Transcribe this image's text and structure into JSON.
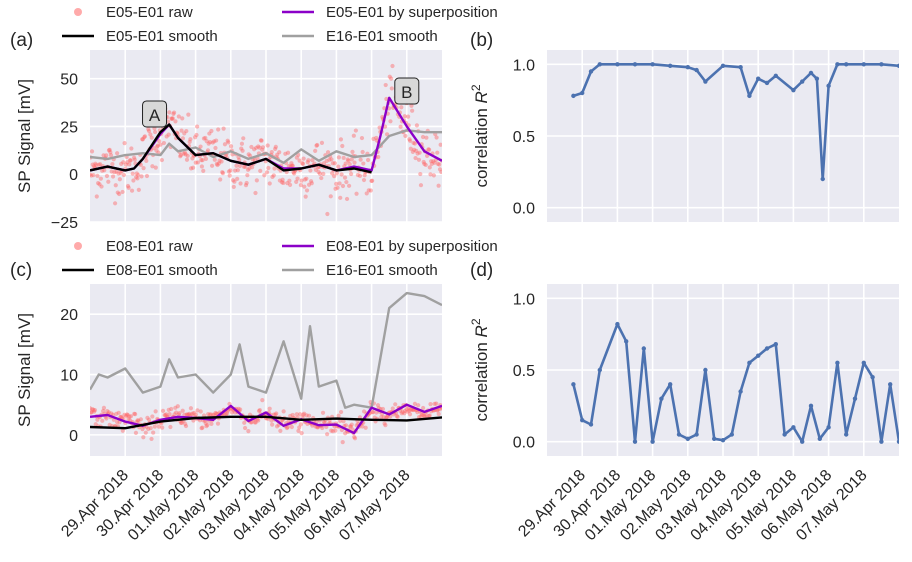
{
  "chart_data": [
    {
      "type": "scatter",
      "panel_label": "(a)",
      "ylabel": "SP Signal [mV]",
      "ylim": [
        -25,
        65
      ],
      "yticks": [
        "50",
        "25",
        "0",
        "−25"
      ],
      "yticks_values": [
        50,
        25,
        0,
        -25
      ],
      "xlim": [
        "2018-04-28",
        "2018-05-08"
      ],
      "grid": true,
      "legend_placement": "top-above",
      "legend": [
        "E05-E01 raw",
        "E05-E01 smooth",
        "E05-E01 by superposition",
        "E16-E01 smooth"
      ],
      "annotations": [
        {
          "text": "A",
          "x": "2018-04-29 20:00",
          "y": 31
        },
        {
          "text": "B",
          "x": "2018-05-07 00:00",
          "y": 43
        }
      ],
      "series": [
        {
          "name": "E05-E01 raw",
          "color": "#ff6666",
          "kind": "points",
          "note": "noisy samples around smooth curve"
        },
        {
          "name": "E05-E01 smooth",
          "color": "#000000",
          "x": [
            "2018-04-28",
            "2018-04-28 12:00",
            "2018-04-29",
            "2018-04-29 06:00",
            "2018-04-29 12:00",
            "2018-04-30",
            "2018-04-30 06:00",
            "2018-04-30 12:00",
            "2018-05-01",
            "2018-05-01 12:00",
            "2018-05-02",
            "2018-05-02 12:00",
            "2018-05-03",
            "2018-05-03 12:00",
            "2018-05-04",
            "2018-05-04 12:00",
            "2018-05-05",
            "2018-05-05 12:00",
            "2018-05-06"
          ],
          "y": [
            2,
            4,
            2,
            3,
            8,
            22,
            26,
            19,
            10,
            11,
            7,
            5,
            8,
            2,
            3,
            5,
            2,
            3,
            1
          ]
        },
        {
          "name": "E05-E01 by superposition",
          "color": "#8b00c8",
          "x": [
            "2018-04-28",
            "2018-04-28 12:00",
            "2018-04-29",
            "2018-04-29 06:00",
            "2018-04-29 12:00",
            "2018-04-30",
            "2018-04-30 06:00",
            "2018-04-30 12:00",
            "2018-05-01",
            "2018-05-01 12:00",
            "2018-05-02",
            "2018-05-02 12:00",
            "2018-05-03",
            "2018-05-03 12:00",
            "2018-05-04",
            "2018-05-04 12:00",
            "2018-05-05",
            "2018-05-05 12:00",
            "2018-05-06",
            "2018-05-06 06:00",
            "2018-05-06 12:00",
            "2018-05-07",
            "2018-05-07 12:00",
            "2018-05-08"
          ],
          "y": [
            2,
            4,
            2,
            3,
            8,
            21,
            26,
            19,
            10,
            11,
            7,
            5,
            8,
            3,
            3,
            5,
            2,
            4,
            2,
            20,
            40,
            25,
            12,
            7
          ]
        },
        {
          "name": "E16-E01 smooth",
          "color": "#a0a0a0",
          "x": [
            "2018-04-28",
            "2018-04-28 12:00",
            "2018-04-29",
            "2018-04-29 12:00",
            "2018-04-30",
            "2018-04-30 06:00",
            "2018-04-30 12:00",
            "2018-05-01",
            "2018-05-01 12:00",
            "2018-05-02",
            "2018-05-02 12:00",
            "2018-05-03",
            "2018-05-03 12:00",
            "2018-05-04",
            "2018-05-04 12:00",
            "2018-05-05",
            "2018-05-05 12:00",
            "2018-05-06",
            "2018-05-06 12:00",
            "2018-05-07",
            "2018-05-07 12:00",
            "2018-05-08"
          ],
          "y": [
            9,
            8,
            10,
            11,
            10,
            16,
            12,
            14,
            9,
            12,
            8,
            11,
            6,
            13,
            7,
            12,
            9,
            10,
            20,
            23,
            22,
            22
          ]
        }
      ]
    },
    {
      "type": "line",
      "panel_label": "(b)",
      "ylabel": "correlation R²",
      "ylim": [
        -0.1,
        1.1
      ],
      "yticks": [
        "1.0",
        "0.5",
        "0.0"
      ],
      "yticks_values": [
        1.0,
        0.5,
        0.0
      ],
      "xlim": [
        "2018-04-28",
        "2018-05-08"
      ],
      "grid": true,
      "series": [
        {
          "name": "correlation",
          "color": "#4c72b0",
          "x": [
            "2018-04-28 18:00",
            "2018-04-29",
            "2018-04-29 06:00",
            "2018-04-29 12:00",
            "2018-04-30",
            "2018-04-30 12:00",
            "2018-05-01",
            "2018-05-01 12:00",
            "2018-05-02",
            "2018-05-02 06:00",
            "2018-05-02 12:00",
            "2018-05-03",
            "2018-05-03 12:00",
            "2018-05-03 18:00",
            "2018-05-04",
            "2018-05-04 06:00",
            "2018-05-04 12:00",
            "2018-05-05",
            "2018-05-05 06:00",
            "2018-05-05 12:00",
            "2018-05-05 16:00",
            "2018-05-05 20:00",
            "2018-05-06",
            "2018-05-06 06:00",
            "2018-05-06 12:00",
            "2018-05-07",
            "2018-05-07 12:00",
            "2018-05-08",
            "2018-05-08 06:00"
          ],
          "y": [
            0.78,
            0.8,
            0.95,
            1.0,
            1.0,
            1.0,
            1.0,
            0.99,
            0.98,
            0.96,
            0.88,
            0.99,
            0.98,
            0.78,
            0.9,
            0.87,
            0.92,
            0.82,
            0.88,
            0.94,
            0.9,
            0.2,
            0.85,
            1.0,
            1.0,
            1.0,
            1.0,
            0.99,
            0.97
          ]
        }
      ]
    },
    {
      "type": "scatter",
      "panel_label": "(c)",
      "ylabel": "SP Signal [mV]",
      "ylim": [
        -3.5,
        25
      ],
      "yticks": [
        "20",
        "10",
        "0"
      ],
      "yticks_values": [
        20,
        10,
        0
      ],
      "xlim": [
        "2018-04-28",
        "2018-05-08"
      ],
      "xticks": [
        "29.Apr 2018",
        "30.Apr 2018",
        "01.May 2018",
        "02.May 2018",
        "03.May 2018",
        "04.May 2018",
        "05.May 2018",
        "06.May 2018",
        "07.May 2018"
      ],
      "grid": true,
      "legend_placement": "top-above",
      "legend": [
        "E08-E01 raw",
        "E08-E01 smooth",
        "E08-E01 by superposition",
        "E16-E01 smooth"
      ],
      "series": [
        {
          "name": "E08-E01 raw",
          "color": "#ff6666",
          "kind": "points",
          "note": "noisy samples around smooth curve"
        },
        {
          "name": "E08-E01 smooth",
          "color": "#000000",
          "x": [
            "2018-04-28",
            "2018-04-29",
            "2018-04-30",
            "2018-05-01",
            "2018-05-02",
            "2018-05-03",
            "2018-05-04",
            "2018-05-05",
            "2018-05-06",
            "2018-05-07",
            "2018-05-08"
          ],
          "y": [
            1.3,
            1.1,
            2.2,
            2.8,
            3.0,
            3.0,
            2.5,
            2.7,
            2.5,
            2.4,
            2.9
          ]
        },
        {
          "name": "E08-E01 by superposition",
          "color": "#8b00c8",
          "x": [
            "2018-04-28",
            "2018-04-28 12:00",
            "2018-04-29",
            "2018-04-29 12:00",
            "2018-04-30",
            "2018-04-30 12:00",
            "2018-05-01",
            "2018-05-01 12:00",
            "2018-05-02",
            "2018-05-02 12:00",
            "2018-05-03",
            "2018-05-03 12:00",
            "2018-05-04",
            "2018-05-04 12:00",
            "2018-05-05",
            "2018-05-05 12:00",
            "2018-05-06",
            "2018-05-06 12:00",
            "2018-05-07",
            "2018-05-07 12:00",
            "2018-05-08"
          ],
          "y": [
            3.0,
            3.3,
            2.2,
            1.5,
            2.5,
            3.0,
            2.8,
            2.5,
            4.8,
            2.3,
            3.7,
            1.5,
            2.6,
            1.6,
            1.7,
            0.3,
            4.5,
            3.4,
            5.0,
            3.8,
            4.8
          ]
        },
        {
          "name": "E16-E01 smooth",
          "color": "#a0a0a0",
          "x": [
            "2018-04-28",
            "2018-04-28 06:00",
            "2018-04-28 12:00",
            "2018-04-29",
            "2018-04-29 12:00",
            "2018-04-30",
            "2018-04-30 06:00",
            "2018-04-30 12:00",
            "2018-05-01",
            "2018-05-01 12:00",
            "2018-05-02",
            "2018-05-02 06:00",
            "2018-05-02 12:00",
            "2018-05-03",
            "2018-05-03 12:00",
            "2018-05-04",
            "2018-05-04 06:00",
            "2018-05-04 12:00",
            "2018-05-05",
            "2018-05-05 06:00",
            "2018-05-05 12:00",
            "2018-05-06",
            "2018-05-06 12:00",
            "2018-05-07",
            "2018-05-07 12:00",
            "2018-05-08"
          ],
          "y": [
            7.5,
            10,
            9.5,
            11,
            7,
            8,
            12.5,
            9.5,
            10,
            7,
            10,
            15,
            8,
            7,
            15.5,
            6,
            18,
            8,
            9,
            4.5,
            5,
            4.5,
            21,
            23.5,
            23,
            21.5
          ]
        }
      ]
    },
    {
      "type": "line",
      "panel_label": "(d)",
      "ylabel": "correlation R²",
      "ylim": [
        -0.1,
        1.1
      ],
      "yticks": [
        "1.0",
        "0.5",
        "0.0"
      ],
      "yticks_values": [
        1.0,
        0.5,
        0.0
      ],
      "xlim": [
        "2018-04-28",
        "2018-05-08"
      ],
      "xticks": [
        "29.Apr 2018",
        "30.Apr 2018",
        "01.May 2018",
        "02.May 2018",
        "03.May 2018",
        "04.May 2018",
        "05.May 2018",
        "06.May 2018",
        "07.May 2018"
      ],
      "grid": true,
      "series": [
        {
          "name": "correlation",
          "color": "#4c72b0",
          "x": [
            "2018-04-28 18:00",
            "2018-04-29",
            "2018-04-29 06:00",
            "2018-04-29 12:00",
            "2018-04-30",
            "2018-04-30 06:00",
            "2018-04-30 12:00",
            "2018-04-30 18:00",
            "2018-05-01",
            "2018-05-01 06:00",
            "2018-05-01 12:00",
            "2018-05-01 18:00",
            "2018-05-02",
            "2018-05-02 06:00",
            "2018-05-02 12:00",
            "2018-05-02 18:00",
            "2018-05-03",
            "2018-05-03 06:00",
            "2018-05-03 12:00",
            "2018-05-03 18:00",
            "2018-05-04",
            "2018-05-04 06:00",
            "2018-05-04 12:00",
            "2018-05-04 18:00",
            "2018-05-05",
            "2018-05-05 06:00",
            "2018-05-05 12:00",
            "2018-05-05 18:00",
            "2018-05-06",
            "2018-05-06 06:00",
            "2018-05-06 12:00",
            "2018-05-06 18:00",
            "2018-05-07",
            "2018-05-07 06:00",
            "2018-05-07 12:00",
            "2018-05-07 18:00",
            "2018-05-08",
            "2018-05-08 06:00"
          ],
          "y": [
            0.4,
            0.15,
            0.12,
            0.5,
            0.82,
            0.7,
            0.0,
            0.65,
            0.0,
            0.3,
            0.4,
            0.05,
            0.02,
            0.05,
            0.5,
            0.02,
            0.01,
            0.05,
            0.35,
            0.55,
            0.6,
            0.65,
            0.68,
            0.05,
            0.1,
            0.0,
            0.25,
            0.02,
            0.1,
            0.55,
            0.05,
            0.3,
            0.55,
            0.45,
            0.0,
            0.4,
            0.0,
            0.1
          ]
        }
      ]
    }
  ]
}
